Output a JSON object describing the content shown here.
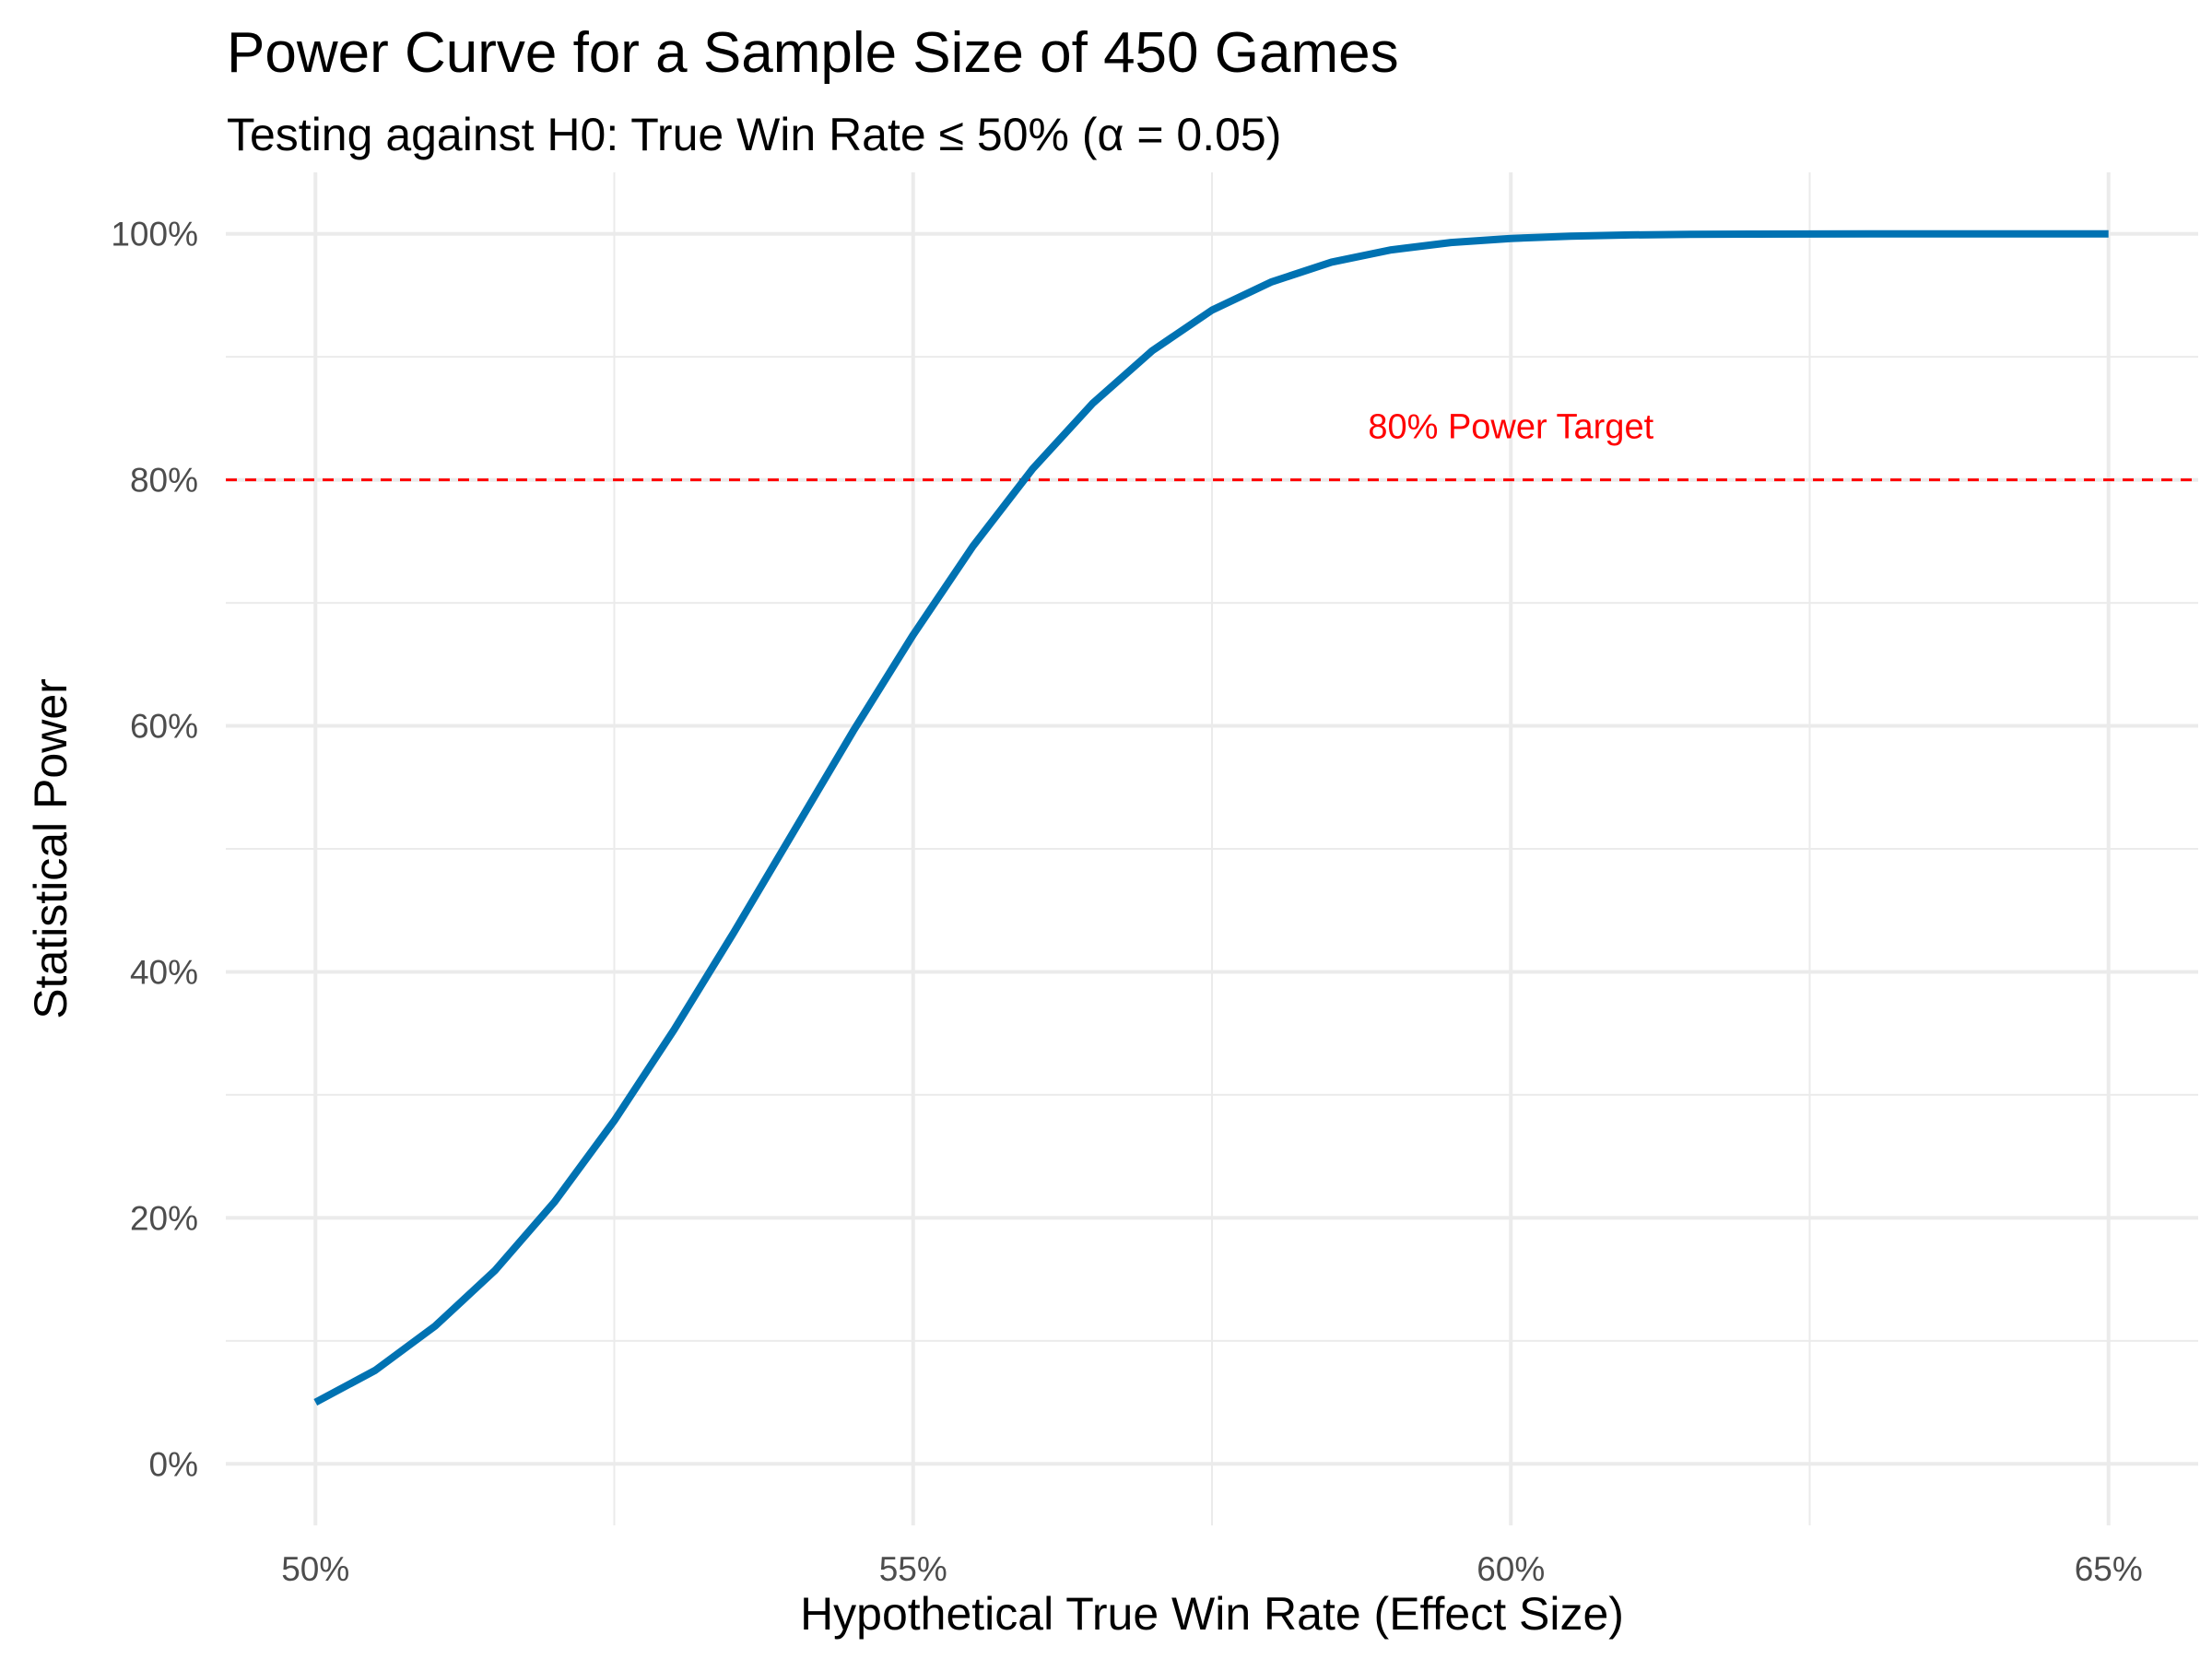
{
  "chart_data": {
    "type": "line",
    "title": "Power Curve for a Sample Size of 450 Games",
    "subtitle": "Testing against H0: True Win Rate ≤ 50% (α = 0.05)",
    "xlabel": "Hypothetical True Win Rate (Effect Size)",
    "ylabel": "Statistical Power",
    "xlim": [
      0.4925,
      0.6575
    ],
    "ylim": [
      -0.05,
      1.05
    ],
    "x_ticks": [
      0.5,
      0.55,
      0.6,
      0.65
    ],
    "x_tick_labels": [
      "50%",
      "55%",
      "60%",
      "65%"
    ],
    "y_ticks": [
      0,
      0.2,
      0.4,
      0.6,
      0.8,
      1.0
    ],
    "y_tick_labels": [
      "0%",
      "20%",
      "40%",
      "60%",
      "80%",
      "100%"
    ],
    "grid": true,
    "colors": {
      "line": "#0072B2",
      "reference": "#FF0000",
      "grid": "#EBEBEB"
    },
    "series": [
      {
        "x": [
          0.5,
          0.505,
          0.51,
          0.515,
          0.52,
          0.525,
          0.53,
          0.535,
          0.54,
          0.545,
          0.55,
          0.555,
          0.56,
          0.565,
          0.57,
          0.575,
          0.58,
          0.585,
          0.59,
          0.595,
          0.6,
          0.605,
          0.61,
          0.615,
          0.62,
          0.625,
          0.63,
          0.635,
          0.64,
          0.645,
          0.65
        ],
        "y": [
          0.05,
          0.076,
          0.112,
          0.157,
          0.213,
          0.279,
          0.353,
          0.432,
          0.514,
          0.596,
          0.674,
          0.746,
          0.809,
          0.862,
          0.905,
          0.938,
          0.961,
          0.977,
          0.987,
          0.993,
          0.9963,
          0.9981,
          0.9991,
          0.9996,
          0.9998,
          0.9999,
          1.0,
          1.0,
          1.0,
          1.0,
          1.0
        ]
      }
    ],
    "reference_line": {
      "y": 0.8,
      "style": "dashed",
      "label": "80% Power Target",
      "label_x": 0.6
    }
  }
}
